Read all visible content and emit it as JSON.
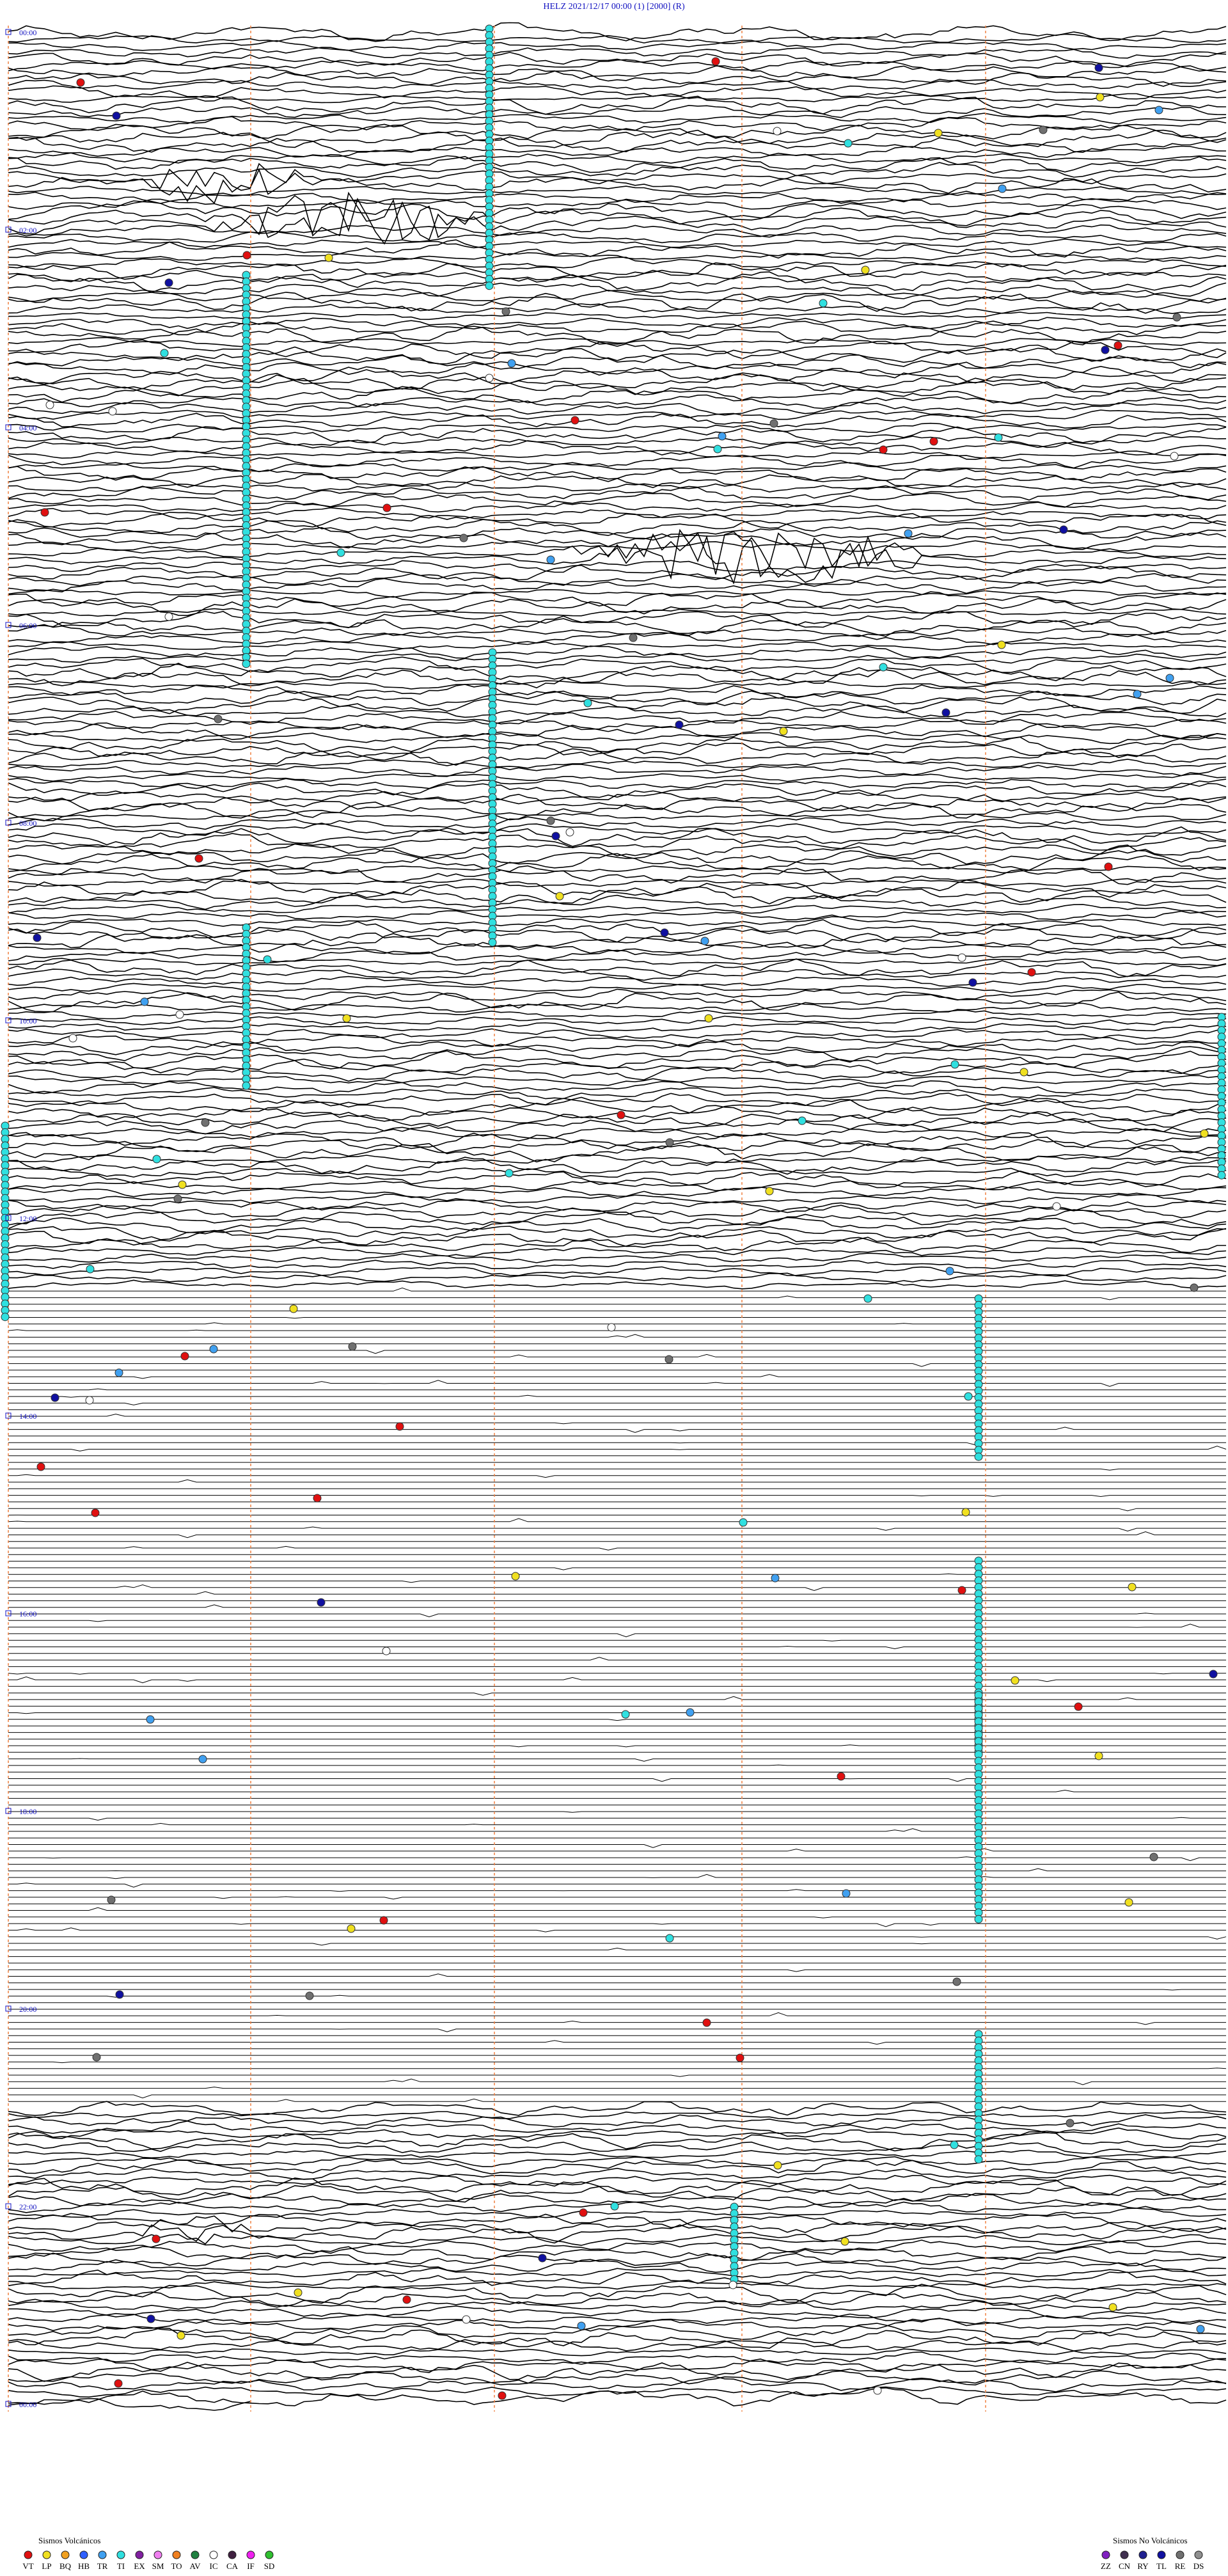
{
  "header": {
    "title": "HELZ     2021/12/17 00:00     (1)     [2000]     (R)"
  },
  "time_labels": [
    "00:00",
    "02:00",
    "04:00",
    "06:00",
    "08:00",
    "10:00",
    "12:00",
    "14:00",
    "16:00",
    "18:00",
    "20:00",
    "22:00",
    "00:00"
  ],
  "legend": {
    "volcanic": {
      "title": "Sismos Volcánicos",
      "items": [
        {
          "code": "VT",
          "color": "#e01010"
        },
        {
          "code": "LP",
          "color": "#f0e020"
        },
        {
          "code": "BQ",
          "color": "#f0a020"
        },
        {
          "code": "HB",
          "color": "#3060ff"
        },
        {
          "code": "TR",
          "color": "#40a0f0"
        },
        {
          "code": "TI",
          "color": "#30e0e0"
        },
        {
          "code": "EX",
          "color": "#8020a0"
        },
        {
          "code": "SM",
          "color": "#f080f0"
        },
        {
          "code": "TO",
          "color": "#f08020"
        },
        {
          "code": "AV",
          "color": "#208040"
        },
        {
          "code": "IC",
          "color": "#ffffff"
        },
        {
          "code": "CA",
          "color": "#402040"
        },
        {
          "code": "IF",
          "color": "#f020f0"
        },
        {
          "code": "SD",
          "color": "#30c030"
        }
      ]
    },
    "nonvolcanic": {
      "title": "Sismos No Volcánicos",
      "items": [
        {
          "code": "ZZ",
          "color": "#8020c0"
        },
        {
          "code": "CN",
          "color": "#403050"
        },
        {
          "code": "RY",
          "color": "#202090"
        },
        {
          "code": "TL",
          "color": "#1010a0"
        },
        {
          "code": "RE",
          "color": "#707070"
        },
        {
          "code": "DS",
          "color": "#909090"
        }
      ]
    }
  }
}
